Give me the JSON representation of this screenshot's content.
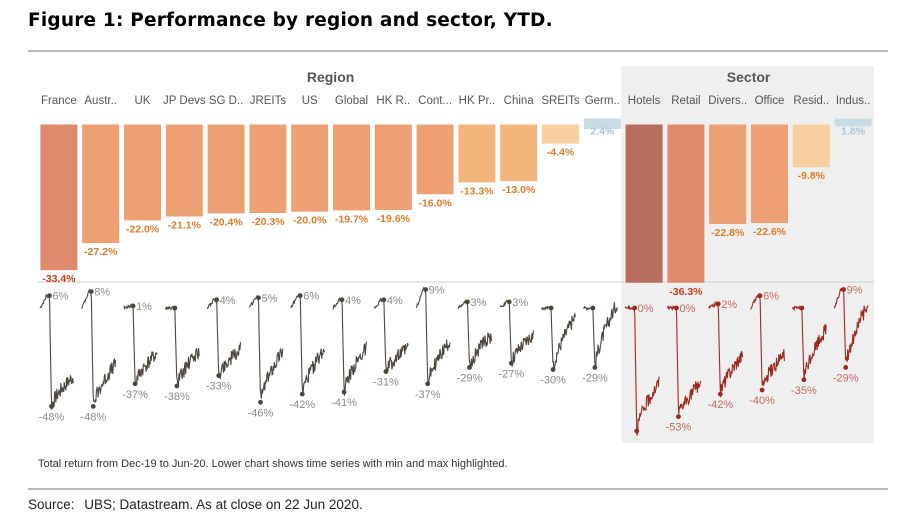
{
  "title": "Figure 1: Performance by region and sector, YTD.",
  "footnote": "Total return from Dec-19 to Jun-20. Lower chart shows time series with min and max highlighted.",
  "source_label": "Source:",
  "source_text": "UBS; Datastream. As at close on 22 Jun 2020.",
  "chart_data": {
    "type": "bar",
    "groups": [
      {
        "name": "Region",
        "shaded": false
      },
      {
        "name": "Sector",
        "shaded": true
      }
    ],
    "categories": [
      "France",
      "Austr..",
      "UK",
      "JP Devs",
      "SG D..",
      "JREITs",
      "US",
      "Global",
      "HK R..",
      "Cont...",
      "HK Pr..",
      "China",
      "SREITs",
      "Germ..",
      "Hotels",
      "Retail",
      "Divers..",
      "Office",
      "Resid..",
      "Indus.."
    ],
    "category_group": [
      "Region",
      "Region",
      "Region",
      "Region",
      "Region",
      "Region",
      "Region",
      "Region",
      "Region",
      "Region",
      "Region",
      "Region",
      "Region",
      "Region",
      "Sector",
      "Sector",
      "Sector",
      "Sector",
      "Sector",
      "Sector"
    ],
    "values": [
      -33.4,
      -27.2,
      -22.0,
      -21.1,
      -20.4,
      -20.3,
      -20.0,
      -19.7,
      -19.6,
      -16.0,
      -13.3,
      -13.0,
      -4.4,
      2.4,
      -36.3,
      -36.3,
      -22.8,
      -22.6,
      -9.8,
      1.8
    ],
    "value_labels": [
      "-33.4%",
      "-27.2%",
      "-22.0%",
      "-21.1%",
      "-20.4%",
      "-20.3%",
      "-20.0%",
      "-19.7%",
      "-19.6%",
      "-16.0%",
      "-13.3%",
      "-13.0%",
      "-4.4%",
      "2.4%",
      "",
      "-36.3%",
      "-22.8%",
      "-22.6%",
      "-9.8%",
      "1.8%"
    ],
    "colors": {
      "region_strong": "#e08a6d",
      "region_mid": "#eda073",
      "region_light": "#f2b57c",
      "region_pale": "#f8cfa0",
      "positive": "#c8dce4",
      "hotels": "#b86e5f",
      "sector_shade": "#efefef",
      "label_region": "#e07a2a",
      "label_region_dark": "#cc3b16",
      "label_positive": "#a9c6d2",
      "line_region": "#4d463f",
      "line_sector": "#9c2a22",
      "sparkline_label": "#8a8a8a",
      "sparkline_label_sector": "#c06a60"
    },
    "sparkline_max_labels": [
      "6%",
      "8%",
      "1%",
      "",
      "4%",
      "5%",
      "6%",
      "4%",
      "4%",
      "9%",
      "3%",
      "3%",
      "",
      "",
      "0%",
      "0%",
      "2%",
      "6%",
      "",
      "9%"
    ],
    "sparkline_min_labels": [
      "-48%",
      "-48%",
      "-37%",
      "-38%",
      "-33%",
      "-46%",
      "-42%",
      "-41%",
      "-31%",
      "-37%",
      "-29%",
      "-27%",
      "-30%",
      "-29%",
      "",
      "-53%",
      "-42%",
      "-40%",
      "-35%",
      "-29%"
    ],
    "sparkline_max": [
      6,
      8,
      1,
      0,
      4,
      5,
      6,
      4,
      4,
      9,
      3,
      3,
      0,
      0,
      0,
      0,
      2,
      6,
      0,
      9
    ],
    "sparkline_min": [
      -48,
      -48,
      -37,
      -38,
      -33,
      -46,
      -42,
      -41,
      -31,
      -37,
      -29,
      -27,
      -30,
      -29,
      -60,
      -53,
      -42,
      -40,
      -35,
      -29
    ],
    "sparkline_end": [
      -33.4,
      -27.2,
      -22.0,
      -21.1,
      -20.4,
      -20.3,
      -20.0,
      -19.7,
      -19.6,
      -16.0,
      -13.3,
      -13.0,
      -4.4,
      2.4,
      -36.3,
      -36.3,
      -22.8,
      -22.6,
      -9.8,
      1.8
    ]
  }
}
